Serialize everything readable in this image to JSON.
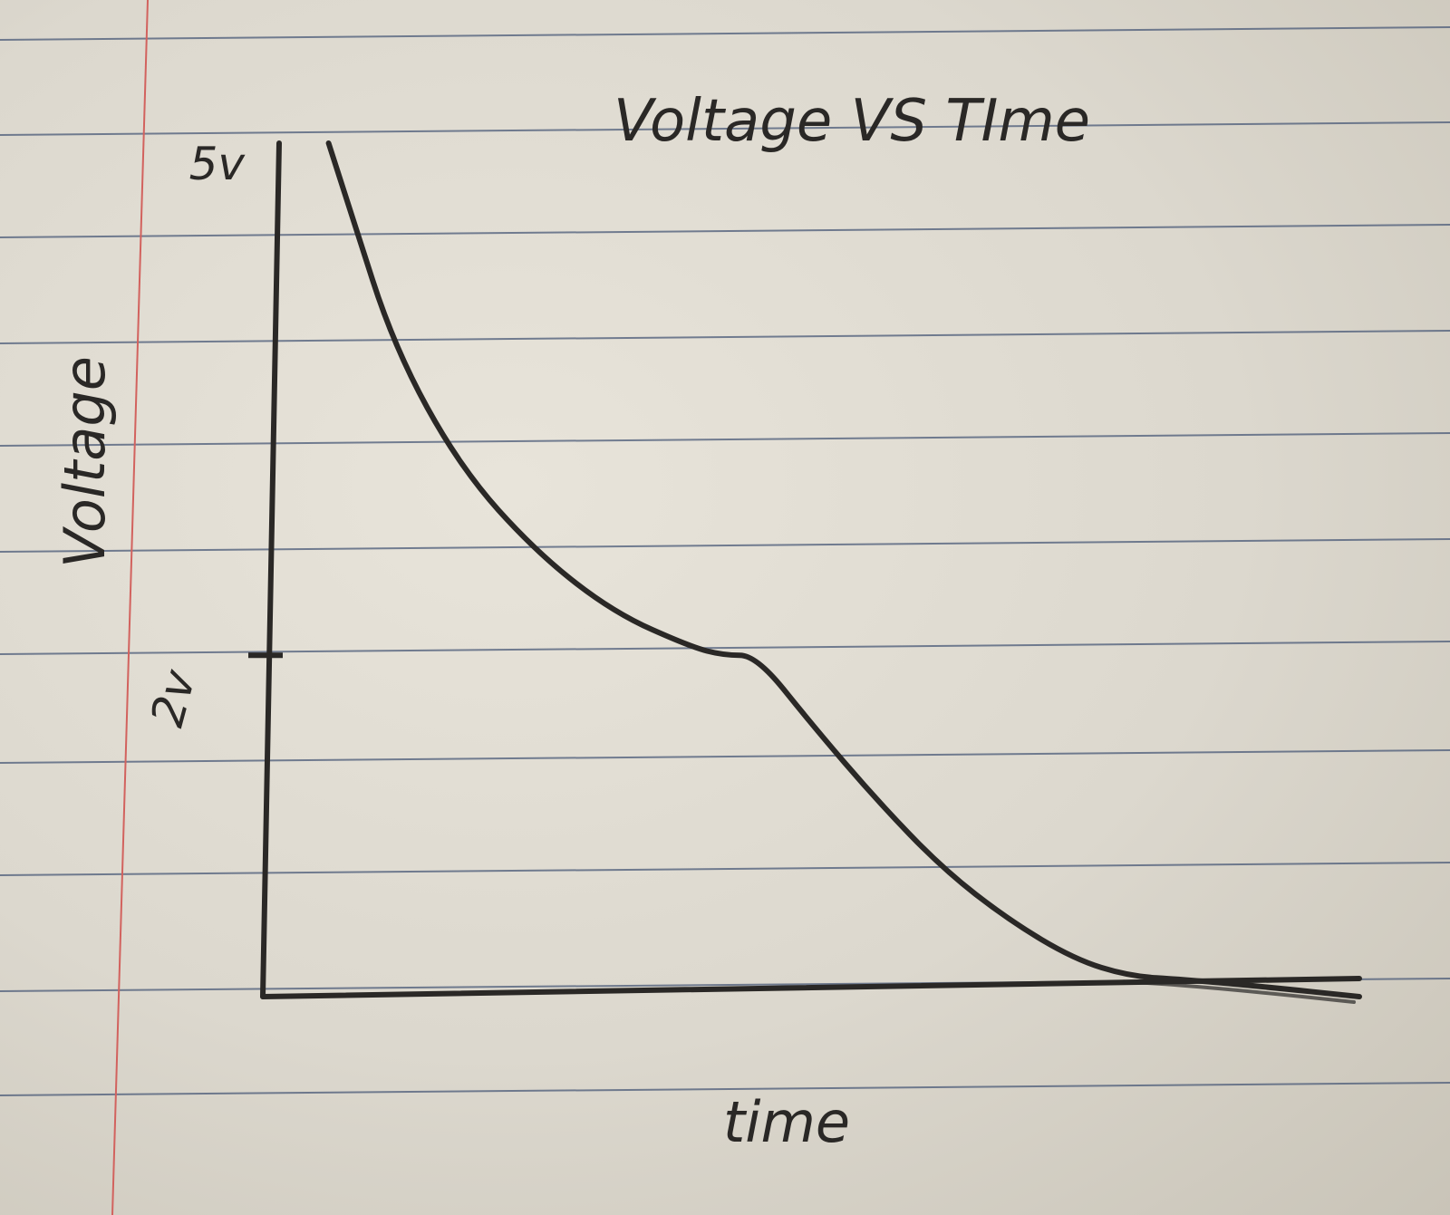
{
  "chart_data": {
    "type": "line",
    "title": "Voltage VS TIme",
    "xlabel": "time",
    "ylabel": "Voltage",
    "y_tick_labels": [
      "5v",
      "2v"
    ],
    "y_ticks": [
      5,
      2
    ],
    "ylim": [
      0,
      5
    ],
    "xlim": [
      0,
      10
    ],
    "grid": false,
    "legend": "none",
    "series": [
      {
        "x": [
          0.6,
          0.8,
          1.2,
          1.8,
          2.5,
          3.2,
          3.9,
          4.2,
          4.5,
          5.0,
          5.6,
          6.2,
          6.8,
          7.4,
          7.9,
          8.4,
          9.1,
          10.0
        ],
        "y": [
          5.0,
          4.6,
          3.8,
          3.1,
          2.6,
          2.25,
          2.05,
          2.0,
          2.0,
          1.6,
          1.15,
          0.75,
          0.45,
          0.22,
          0.12,
          0.1,
          0.06,
          0.0
        ]
      }
    ]
  },
  "colors": {
    "ink": "#2a2826",
    "ruled_line": "#4a5a78",
    "margin_line": "#d2625e",
    "paper": "#e3dfd5"
  }
}
